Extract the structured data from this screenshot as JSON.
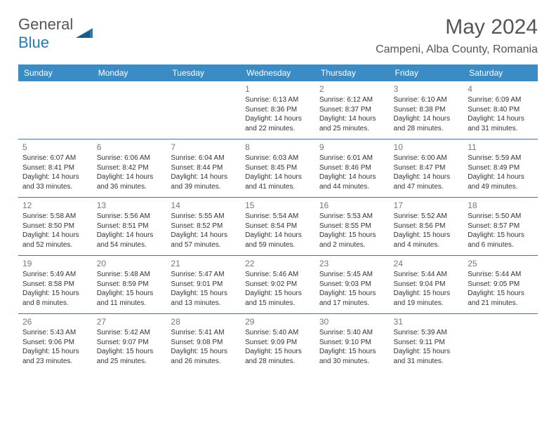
{
  "brand": {
    "part1": "General",
    "part2": "Blue"
  },
  "title": "May 2024",
  "location": "Campeni, Alba County, Romania",
  "colors": {
    "header_bg": "#3b8cc4",
    "border": "#2a7ab0",
    "text": "#333333",
    "muted": "#777777",
    "title": "#555555"
  },
  "dayHeaders": [
    "Sunday",
    "Monday",
    "Tuesday",
    "Wednesday",
    "Thursday",
    "Friday",
    "Saturday"
  ],
  "weeks": [
    [
      null,
      null,
      null,
      {
        "n": "1",
        "sr": "Sunrise: 6:13 AM",
        "ss": "Sunset: 8:36 PM",
        "d1": "Daylight: 14 hours",
        "d2": "and 22 minutes."
      },
      {
        "n": "2",
        "sr": "Sunrise: 6:12 AM",
        "ss": "Sunset: 8:37 PM",
        "d1": "Daylight: 14 hours",
        "d2": "and 25 minutes."
      },
      {
        "n": "3",
        "sr": "Sunrise: 6:10 AM",
        "ss": "Sunset: 8:38 PM",
        "d1": "Daylight: 14 hours",
        "d2": "and 28 minutes."
      },
      {
        "n": "4",
        "sr": "Sunrise: 6:09 AM",
        "ss": "Sunset: 8:40 PM",
        "d1": "Daylight: 14 hours",
        "d2": "and 31 minutes."
      }
    ],
    [
      {
        "n": "5",
        "sr": "Sunrise: 6:07 AM",
        "ss": "Sunset: 8:41 PM",
        "d1": "Daylight: 14 hours",
        "d2": "and 33 minutes."
      },
      {
        "n": "6",
        "sr": "Sunrise: 6:06 AM",
        "ss": "Sunset: 8:42 PM",
        "d1": "Daylight: 14 hours",
        "d2": "and 36 minutes."
      },
      {
        "n": "7",
        "sr": "Sunrise: 6:04 AM",
        "ss": "Sunset: 8:44 PM",
        "d1": "Daylight: 14 hours",
        "d2": "and 39 minutes."
      },
      {
        "n": "8",
        "sr": "Sunrise: 6:03 AM",
        "ss": "Sunset: 8:45 PM",
        "d1": "Daylight: 14 hours",
        "d2": "and 41 minutes."
      },
      {
        "n": "9",
        "sr": "Sunrise: 6:01 AM",
        "ss": "Sunset: 8:46 PM",
        "d1": "Daylight: 14 hours",
        "d2": "and 44 minutes."
      },
      {
        "n": "10",
        "sr": "Sunrise: 6:00 AM",
        "ss": "Sunset: 8:47 PM",
        "d1": "Daylight: 14 hours",
        "d2": "and 47 minutes."
      },
      {
        "n": "11",
        "sr": "Sunrise: 5:59 AM",
        "ss": "Sunset: 8:49 PM",
        "d1": "Daylight: 14 hours",
        "d2": "and 49 minutes."
      }
    ],
    [
      {
        "n": "12",
        "sr": "Sunrise: 5:58 AM",
        "ss": "Sunset: 8:50 PM",
        "d1": "Daylight: 14 hours",
        "d2": "and 52 minutes."
      },
      {
        "n": "13",
        "sr": "Sunrise: 5:56 AM",
        "ss": "Sunset: 8:51 PM",
        "d1": "Daylight: 14 hours",
        "d2": "and 54 minutes."
      },
      {
        "n": "14",
        "sr": "Sunrise: 5:55 AM",
        "ss": "Sunset: 8:52 PM",
        "d1": "Daylight: 14 hours",
        "d2": "and 57 minutes."
      },
      {
        "n": "15",
        "sr": "Sunrise: 5:54 AM",
        "ss": "Sunset: 8:54 PM",
        "d1": "Daylight: 14 hours",
        "d2": "and 59 minutes."
      },
      {
        "n": "16",
        "sr": "Sunrise: 5:53 AM",
        "ss": "Sunset: 8:55 PM",
        "d1": "Daylight: 15 hours",
        "d2": "and 2 minutes."
      },
      {
        "n": "17",
        "sr": "Sunrise: 5:52 AM",
        "ss": "Sunset: 8:56 PM",
        "d1": "Daylight: 15 hours",
        "d2": "and 4 minutes."
      },
      {
        "n": "18",
        "sr": "Sunrise: 5:50 AM",
        "ss": "Sunset: 8:57 PM",
        "d1": "Daylight: 15 hours",
        "d2": "and 6 minutes."
      }
    ],
    [
      {
        "n": "19",
        "sr": "Sunrise: 5:49 AM",
        "ss": "Sunset: 8:58 PM",
        "d1": "Daylight: 15 hours",
        "d2": "and 8 minutes."
      },
      {
        "n": "20",
        "sr": "Sunrise: 5:48 AM",
        "ss": "Sunset: 8:59 PM",
        "d1": "Daylight: 15 hours",
        "d2": "and 11 minutes."
      },
      {
        "n": "21",
        "sr": "Sunrise: 5:47 AM",
        "ss": "Sunset: 9:01 PM",
        "d1": "Daylight: 15 hours",
        "d2": "and 13 minutes."
      },
      {
        "n": "22",
        "sr": "Sunrise: 5:46 AM",
        "ss": "Sunset: 9:02 PM",
        "d1": "Daylight: 15 hours",
        "d2": "and 15 minutes."
      },
      {
        "n": "23",
        "sr": "Sunrise: 5:45 AM",
        "ss": "Sunset: 9:03 PM",
        "d1": "Daylight: 15 hours",
        "d2": "and 17 minutes."
      },
      {
        "n": "24",
        "sr": "Sunrise: 5:44 AM",
        "ss": "Sunset: 9:04 PM",
        "d1": "Daylight: 15 hours",
        "d2": "and 19 minutes."
      },
      {
        "n": "25",
        "sr": "Sunrise: 5:44 AM",
        "ss": "Sunset: 9:05 PM",
        "d1": "Daylight: 15 hours",
        "d2": "and 21 minutes."
      }
    ],
    [
      {
        "n": "26",
        "sr": "Sunrise: 5:43 AM",
        "ss": "Sunset: 9:06 PM",
        "d1": "Daylight: 15 hours",
        "d2": "and 23 minutes."
      },
      {
        "n": "27",
        "sr": "Sunrise: 5:42 AM",
        "ss": "Sunset: 9:07 PM",
        "d1": "Daylight: 15 hours",
        "d2": "and 25 minutes."
      },
      {
        "n": "28",
        "sr": "Sunrise: 5:41 AM",
        "ss": "Sunset: 9:08 PM",
        "d1": "Daylight: 15 hours",
        "d2": "and 26 minutes."
      },
      {
        "n": "29",
        "sr": "Sunrise: 5:40 AM",
        "ss": "Sunset: 9:09 PM",
        "d1": "Daylight: 15 hours",
        "d2": "and 28 minutes."
      },
      {
        "n": "30",
        "sr": "Sunrise: 5:40 AM",
        "ss": "Sunset: 9:10 PM",
        "d1": "Daylight: 15 hours",
        "d2": "and 30 minutes."
      },
      {
        "n": "31",
        "sr": "Sunrise: 5:39 AM",
        "ss": "Sunset: 9:11 PM",
        "d1": "Daylight: 15 hours",
        "d2": "and 31 minutes."
      },
      null
    ]
  ]
}
